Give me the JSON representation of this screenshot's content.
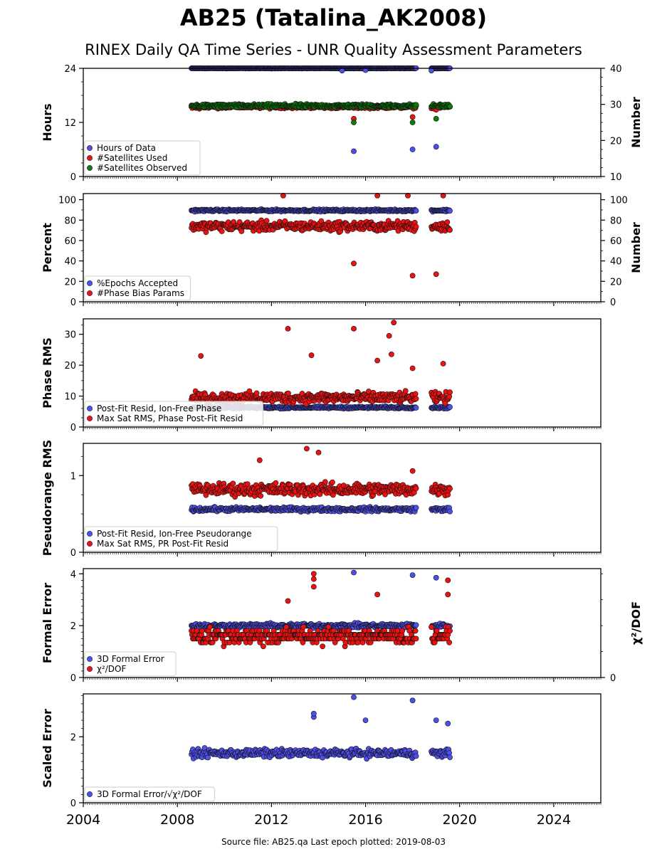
{
  "title": "AB25 (Tatalina_AK2008)",
  "subtitle": "RINEX Daily QA Time Series - UNR Quality Assessment Parameters",
  "footer": "Source file: AB25.qa Last epoch plotted: 2019-08-03",
  "colors": {
    "blue": "#4f4ff0",
    "red": "#ee1111",
    "green": "#0b7d0b",
    "edge": "#111111"
  },
  "chart_data": [
    {
      "type": "scatter",
      "ylabel": "Hours",
      "ylabel_right": "Number",
      "ylim": [
        0,
        24
      ],
      "yticks": [
        0,
        12,
        24
      ],
      "ylim_right": [
        10,
        40
      ],
      "yticks_right": [
        10,
        20,
        30,
        40
      ],
      "xlim": [
        2004,
        2026
      ],
      "xticks": [
        2004,
        2008,
        2012,
        2016,
        2020,
        2024
      ],
      "legend_position": "lower-left",
      "series": [
        {
          "name": "Hours of Data",
          "color": "blue",
          "axis": "left",
          "level": 24.0,
          "jitter": 0.08,
          "outliers": [
            [
              2015.0,
              23.5
            ],
            [
              2015.5,
              5.6
            ],
            [
              2016.0,
              23.6
            ],
            [
              2018.0,
              6.0
            ],
            [
              2019.0,
              6.6
            ],
            [
              2018.8,
              23.5
            ]
          ]
        },
        {
          "name": "#Satellites Used",
          "color": "red",
          "axis": "right",
          "level": 29.3,
          "jitter": 0.6,
          "outliers": [
            [
              2009.7,
              30.0
            ],
            [
              2015.5,
              26.0
            ],
            [
              2018.0,
              26.5
            ],
            [
              2019.0,
              28.5
            ]
          ]
        },
        {
          "name": "#Satellites Observed",
          "color": "green",
          "axis": "right",
          "level": 29.6,
          "jitter": 0.7,
          "outliers": [
            [
              2015.5,
              25.0
            ],
            [
              2018.0,
              25.0
            ],
            [
              2019.0,
              26.0
            ]
          ]
        }
      ]
    },
    {
      "type": "scatter",
      "ylabel": "Percent",
      "ylabel_right": "Number",
      "ylim": [
        0,
        106
      ],
      "yticks": [
        0,
        20,
        40,
        60,
        80,
        100
      ],
      "ylim_right": [
        0,
        106
      ],
      "yticks_right": [
        0,
        20,
        40,
        60,
        80,
        100
      ],
      "legend_position": "lower-left",
      "series": [
        {
          "name": "%Epochs Accepted",
          "color": "blue",
          "axis": "left",
          "level": 89.5,
          "jitter": 1.5,
          "outliers": []
        },
        {
          "name": "#Phase Bias Params",
          "color": "red",
          "axis": "right",
          "level": 74,
          "jitter": 7,
          "outliers": [
            [
              2015.5,
              37.5
            ],
            [
              2018.0,
              25.5
            ],
            [
              2019.0,
              27.0
            ],
            [
              2012.5,
              104
            ],
            [
              2016.5,
              104
            ],
            [
              2017.8,
              104
            ],
            [
              2019.3,
              104
            ]
          ]
        }
      ]
    },
    {
      "type": "scatter",
      "ylabel": "Phase RMS",
      "ylim": [
        0,
        35
      ],
      "yticks": [
        0,
        10,
        20,
        30
      ],
      "legend_position": "lower-left",
      "series": [
        {
          "name": "Post-Fit Resid, Ion-Free Phase",
          "color": "blue",
          "axis": "left",
          "level": 6.3,
          "jitter": 0.5,
          "outliers": []
        },
        {
          "name": "Max Sat RMS, Phase Post-Fit Resid",
          "color": "red",
          "axis": "left",
          "level": 9.5,
          "jitter": 2.5,
          "outliers": [
            [
              2009.0,
              23.0
            ],
            [
              2012.7,
              31.8
            ],
            [
              2013.7,
              23.2
            ],
            [
              2015.5,
              31.8
            ],
            [
              2016.5,
              21.5
            ],
            [
              2017.0,
              29.5
            ],
            [
              2017.2,
              33.8
            ],
            [
              2017.1,
              23.5
            ],
            [
              2019.3,
              20.5
            ],
            [
              2018.0,
              19.0
            ]
          ]
        }
      ]
    },
    {
      "type": "scatter",
      "ylabel": "Pseudorange RMS",
      "ylim": [
        0,
        1.42
      ],
      "yticks": [
        0,
        1
      ],
      "legend_position": "lower-left",
      "series": [
        {
          "name": "Post-Fit Resid, Ion-Free Pseudorange",
          "color": "blue",
          "axis": "left",
          "level": 0.56,
          "jitter": 0.04,
          "outliers": []
        },
        {
          "name": "Max Sat RMS, PR Post-Fit Resid",
          "color": "red",
          "axis": "left",
          "level": 0.82,
          "jitter": 0.12,
          "outliers": [
            [
              2013.5,
              1.35
            ],
            [
              2018.0,
              1.06
            ],
            [
              2011.5,
              1.2
            ],
            [
              2014.0,
              1.3
            ]
          ]
        }
      ]
    },
    {
      "type": "scatter",
      "ylabel": "Formal Error",
      "ylabel_right": "χ²/DOF",
      "ylim": [
        0,
        4.2
      ],
      "yticks": [
        0,
        2,
        4
      ],
      "ylim_right": [
        0,
        4.2
      ],
      "yticks_right": [
        0
      ],
      "legend_position": "lower-left",
      "series": [
        {
          "name": "3D Formal Error",
          "color": "blue",
          "axis": "left",
          "level": 2.0,
          "jitter": 0.12,
          "outliers": [
            [
              2015.5,
              4.05
            ],
            [
              2018.0,
              3.95
            ],
            [
              2019.0,
              3.85
            ]
          ]
        },
        {
          "name": "χ²/DOF",
          "color": "red",
          "axis": "right",
          "level": 1.6,
          "jitter": 0.45,
          "quantize": 0.15,
          "outliers": [
            [
              2013.8,
              4.0
            ],
            [
              2013.8,
              3.8
            ],
            [
              2013.8,
              3.5
            ],
            [
              2012.7,
              2.95
            ],
            [
              2019.5,
              3.75
            ],
            [
              2019.5,
              3.2
            ],
            [
              2016.5,
              3.2
            ]
          ]
        }
      ]
    },
    {
      "type": "scatter",
      "ylabel": "Scaled Error",
      "ylim": [
        0,
        3.3
      ],
      "yticks": [
        0,
        2
      ],
      "legend_position": "lower-left",
      "series": [
        {
          "name": "3D Formal Error/√χ²/DOF",
          "color": "blue",
          "axis": "left",
          "level": 1.5,
          "jitter": 0.18,
          "outliers": [
            [
              2015.5,
              3.2
            ],
            [
              2018.0,
              3.1
            ],
            [
              2013.8,
              2.6
            ],
            [
              2013.8,
              2.7
            ],
            [
              2019.0,
              2.5
            ],
            [
              2016.0,
              2.5
            ],
            [
              2019.5,
              2.4
            ]
          ]
        }
      ]
    }
  ],
  "data_spans": [
    [
      2008.6,
      2018.15
    ],
    [
      2018.8,
      2019.6
    ]
  ]
}
